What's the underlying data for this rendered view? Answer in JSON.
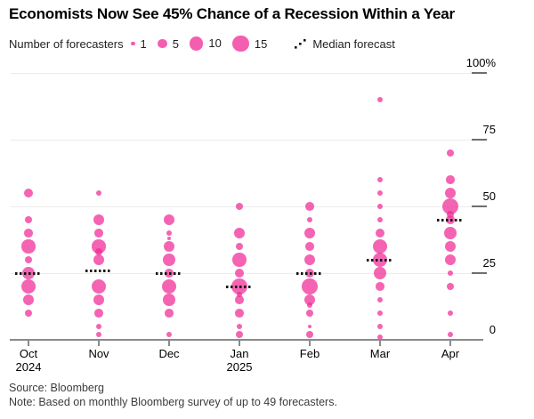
{
  "title": "Economists Now See 45% Chance of a Recession Within a Year",
  "legend": {
    "label": "Number of forecasters",
    "sizes": [
      {
        "label": "1",
        "count": 1
      },
      {
        "label": "5",
        "count": 5
      },
      {
        "label": "10",
        "count": 10
      },
      {
        "label": "15",
        "count": 15
      }
    ],
    "median_label": "Median forecast"
  },
  "source": "Source: Bloomberg",
  "note": "Note: Based on monthly Bloomberg survey of up to 49 forecasters.",
  "colors": {
    "bubble": "rgba(240,40,150,0.72)",
    "bubble_solid": "#f468b5",
    "overlap": "#f13b9f",
    "median": "#141414",
    "grid": "#ececec",
    "axis": "#8a8a8a",
    "text": "#000000",
    "footnote": "#3c3c3c"
  },
  "chart_data": {
    "type": "scatter",
    "title": "Economists Now See 45% Chance of a Recession Within a Year",
    "xlabel": "",
    "ylabel": "",
    "ylim": [
      0,
      100
    ],
    "grid": true,
    "legend_position": "top",
    "yticks": [
      {
        "value": 100,
        "label": "100%"
      },
      {
        "value": 75,
        "label": "75"
      },
      {
        "value": 50,
        "label": "50"
      },
      {
        "value": 25,
        "label": "25"
      },
      {
        "value": 0,
        "label": "0"
      }
    ],
    "months": [
      {
        "label": "Oct",
        "sublabel": "2024",
        "median": 25,
        "points": [
          [
            55,
            5
          ],
          [
            45,
            3
          ],
          [
            40,
            4
          ],
          [
            35,
            10
          ],
          [
            30,
            3
          ],
          [
            25,
            8
          ],
          [
            20,
            11
          ],
          [
            15,
            6
          ],
          [
            10,
            3
          ]
        ]
      },
      {
        "label": "Nov",
        "sublabel": "",
        "median": 26,
        "points": [
          [
            55,
            2
          ],
          [
            45,
            7
          ],
          [
            40,
            4
          ],
          [
            35,
            10
          ],
          [
            33,
            3
          ],
          [
            30,
            7
          ],
          [
            20,
            11
          ],
          [
            15,
            7
          ],
          [
            10,
            4
          ],
          [
            5,
            2
          ],
          [
            2,
            2
          ]
        ]
      },
      {
        "label": "Dec",
        "sublabel": "",
        "median": 25,
        "points": [
          [
            45,
            7
          ],
          [
            40,
            2
          ],
          [
            38,
            1
          ],
          [
            35,
            6
          ],
          [
            30,
            8
          ],
          [
            25,
            4
          ],
          [
            20,
            11
          ],
          [
            15,
            8
          ],
          [
            10,
            4
          ],
          [
            2,
            2
          ]
        ]
      },
      {
        "label": "Jan",
        "sublabel": "2025",
        "median": 20,
        "points": [
          [
            50,
            3
          ],
          [
            40,
            6
          ],
          [
            35,
            3
          ],
          [
            30,
            10
          ],
          [
            25,
            5
          ],
          [
            20,
            14
          ],
          [
            17,
            2
          ],
          [
            15,
            4
          ],
          [
            10,
            4
          ],
          [
            5,
            2
          ],
          [
            2,
            3
          ]
        ]
      },
      {
        "label": "Feb",
        "sublabel": "",
        "median": 25,
        "points": [
          [
            50,
            4
          ],
          [
            45,
            2
          ],
          [
            40,
            6
          ],
          [
            35,
            4
          ],
          [
            30,
            6
          ],
          [
            25,
            5
          ],
          [
            20,
            13
          ],
          [
            15,
            6
          ],
          [
            13,
            2
          ],
          [
            10,
            3
          ],
          [
            5,
            1
          ],
          [
            2,
            3
          ]
        ]
      },
      {
        "label": "Mar",
        "sublabel": "",
        "median": 30,
        "points": [
          [
            90,
            2
          ],
          [
            60,
            2
          ],
          [
            55,
            2
          ],
          [
            50,
            2
          ],
          [
            45,
            2
          ],
          [
            40,
            5
          ],
          [
            35,
            12
          ],
          [
            30,
            11
          ],
          [
            25,
            9
          ],
          [
            20,
            4
          ],
          [
            15,
            2
          ],
          [
            10,
            2
          ],
          [
            5,
            2
          ],
          [
            1,
            2
          ]
        ]
      },
      {
        "label": "Apr",
        "sublabel": "",
        "median": 45,
        "points": [
          [
            70,
            3
          ],
          [
            60,
            4
          ],
          [
            55,
            7
          ],
          [
            50,
            14
          ],
          [
            47,
            3
          ],
          [
            45,
            4
          ],
          [
            40,
            9
          ],
          [
            35,
            6
          ],
          [
            30,
            6
          ],
          [
            25,
            2
          ],
          [
            20,
            3
          ],
          [
            10,
            2
          ],
          [
            2,
            2
          ]
        ]
      }
    ]
  }
}
